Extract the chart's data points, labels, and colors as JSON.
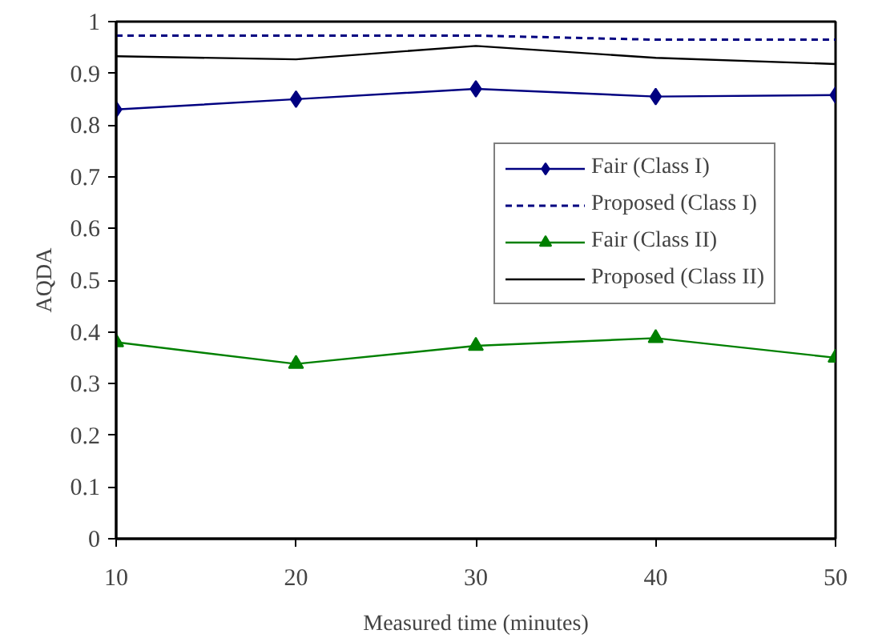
{
  "chart_data": {
    "type": "line",
    "xlabel": "Measured time (minutes)",
    "ylabel": "AQDA",
    "x": [
      10,
      20,
      30,
      40,
      50
    ],
    "series": [
      {
        "name": "Fair (Class I)",
        "color": "#000080",
        "values": [
          0.83,
          0.85,
          0.87,
          0.855,
          0.858
        ],
        "marker": "diamond",
        "line_style": "solid"
      },
      {
        "name": "Proposed (Class I)",
        "color": "#000080",
        "values": [
          0.973,
          0.973,
          0.973,
          0.965,
          0.965
        ],
        "marker": "none",
        "line_style": "dashed"
      },
      {
        "name": "Fair (Class II)",
        "color": "#008000",
        "values": [
          0.38,
          0.338,
          0.373,
          0.388,
          0.35
        ],
        "marker": "triangle",
        "line_style": "solid"
      },
      {
        "name": "Proposed (Class II)",
        "color": "#000000",
        "values": [
          0.933,
          0.927,
          0.953,
          0.93,
          0.918
        ],
        "marker": "none",
        "line_style": "solid"
      }
    ],
    "xlim": [
      10,
      50
    ],
    "xticks": [
      10,
      20,
      30,
      40,
      50
    ],
    "ylim": [
      0,
      1
    ],
    "yticks": [
      0,
      0.1,
      0.2,
      0.3,
      0.4,
      0.5,
      0.6,
      0.7,
      0.8,
      0.9,
      1
    ],
    "grid": false,
    "legend": "right"
  }
}
